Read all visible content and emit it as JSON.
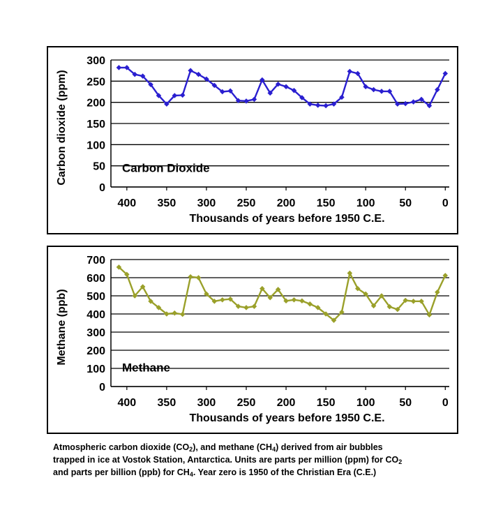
{
  "chart_data": [
    {
      "id": "co2",
      "type": "line",
      "inner_label": "Carbon Dioxide",
      "xlabel": "Thousands of years before 1950 C.E.",
      "ylabel": "Carbon dioxide  (ppm)",
      "xlim": [
        420,
        -5
      ],
      "ylim": [
        0,
        300
      ],
      "yticks": [
        0,
        50,
        100,
        150,
        200,
        250,
        300
      ],
      "xticks": [
        400,
        350,
        300,
        250,
        200,
        150,
        100,
        50,
        0
      ],
      "grid": "horizontal",
      "color": "#2a1fd0",
      "x": [
        410,
        400,
        390,
        380,
        370,
        360,
        350,
        340,
        330,
        320,
        310,
        300,
        290,
        280,
        270,
        260,
        250,
        240,
        230,
        220,
        210,
        200,
        190,
        180,
        170,
        160,
        150,
        140,
        130,
        120,
        110,
        100,
        90,
        80,
        70,
        60,
        50,
        40,
        30,
        20,
        10,
        0
      ],
      "y": [
        282,
        282,
        266,
        262,
        242,
        216,
        196,
        216,
        217,
        275,
        266,
        255,
        240,
        225,
        227,
        204,
        203,
        207,
        253,
        222,
        243,
        237,
        228,
        211,
        196,
        193,
        192,
        196,
        212,
        273,
        268,
        237,
        230,
        226,
        226,
        196,
        197,
        201,
        207,
        192,
        230,
        268
      ]
    },
    {
      "id": "ch4",
      "type": "line",
      "inner_label": "Methane",
      "xlabel": "Thousands of years before 1950 C.E.",
      "ylabel": "Methane (ppb)",
      "xlim": [
        420,
        -5
      ],
      "ylim": [
        0,
        700
      ],
      "yticks": [
        0,
        100,
        200,
        300,
        400,
        500,
        600,
        700
      ],
      "xticks": [
        400,
        350,
        300,
        250,
        200,
        150,
        100,
        50,
        0
      ],
      "grid": "horizontal",
      "color": "#9aa02a",
      "x": [
        410,
        400,
        390,
        380,
        370,
        360,
        350,
        340,
        330,
        320,
        310,
        300,
        290,
        280,
        270,
        260,
        250,
        240,
        230,
        220,
        210,
        200,
        190,
        180,
        170,
        160,
        150,
        140,
        130,
        120,
        110,
        100,
        90,
        80,
        70,
        60,
        50,
        40,
        30,
        20,
        10,
        0
      ],
      "y": [
        658,
        618,
        500,
        550,
        470,
        435,
        400,
        405,
        398,
        605,
        600,
        510,
        470,
        478,
        482,
        442,
        435,
        442,
        540,
        490,
        535,
        472,
        478,
        472,
        455,
        435,
        400,
        365,
        410,
        625,
        540,
        510,
        445,
        500,
        440,
        425,
        475,
        470,
        470,
        395,
        520,
        612
      ]
    }
  ],
  "caption": {
    "line1_a": "Atmospheric carbon dioxide (CO",
    "line1_sub1": "2",
    "line1_b": "), and methane (CH",
    "line1_sub2": "4",
    "line1_c": ") derived from air bubbles",
    "line2_a": "trapped in ice at Vostok Station, Antarctica.  Units are parts per million (ppm) for CO",
    "line2_sub": "2",
    "line3_a": "and parts per billion (ppb) for CH",
    "line3_sub": "4",
    "line3_b": ".  Year zero is 1950 of the Christian Era (C.E.)"
  }
}
